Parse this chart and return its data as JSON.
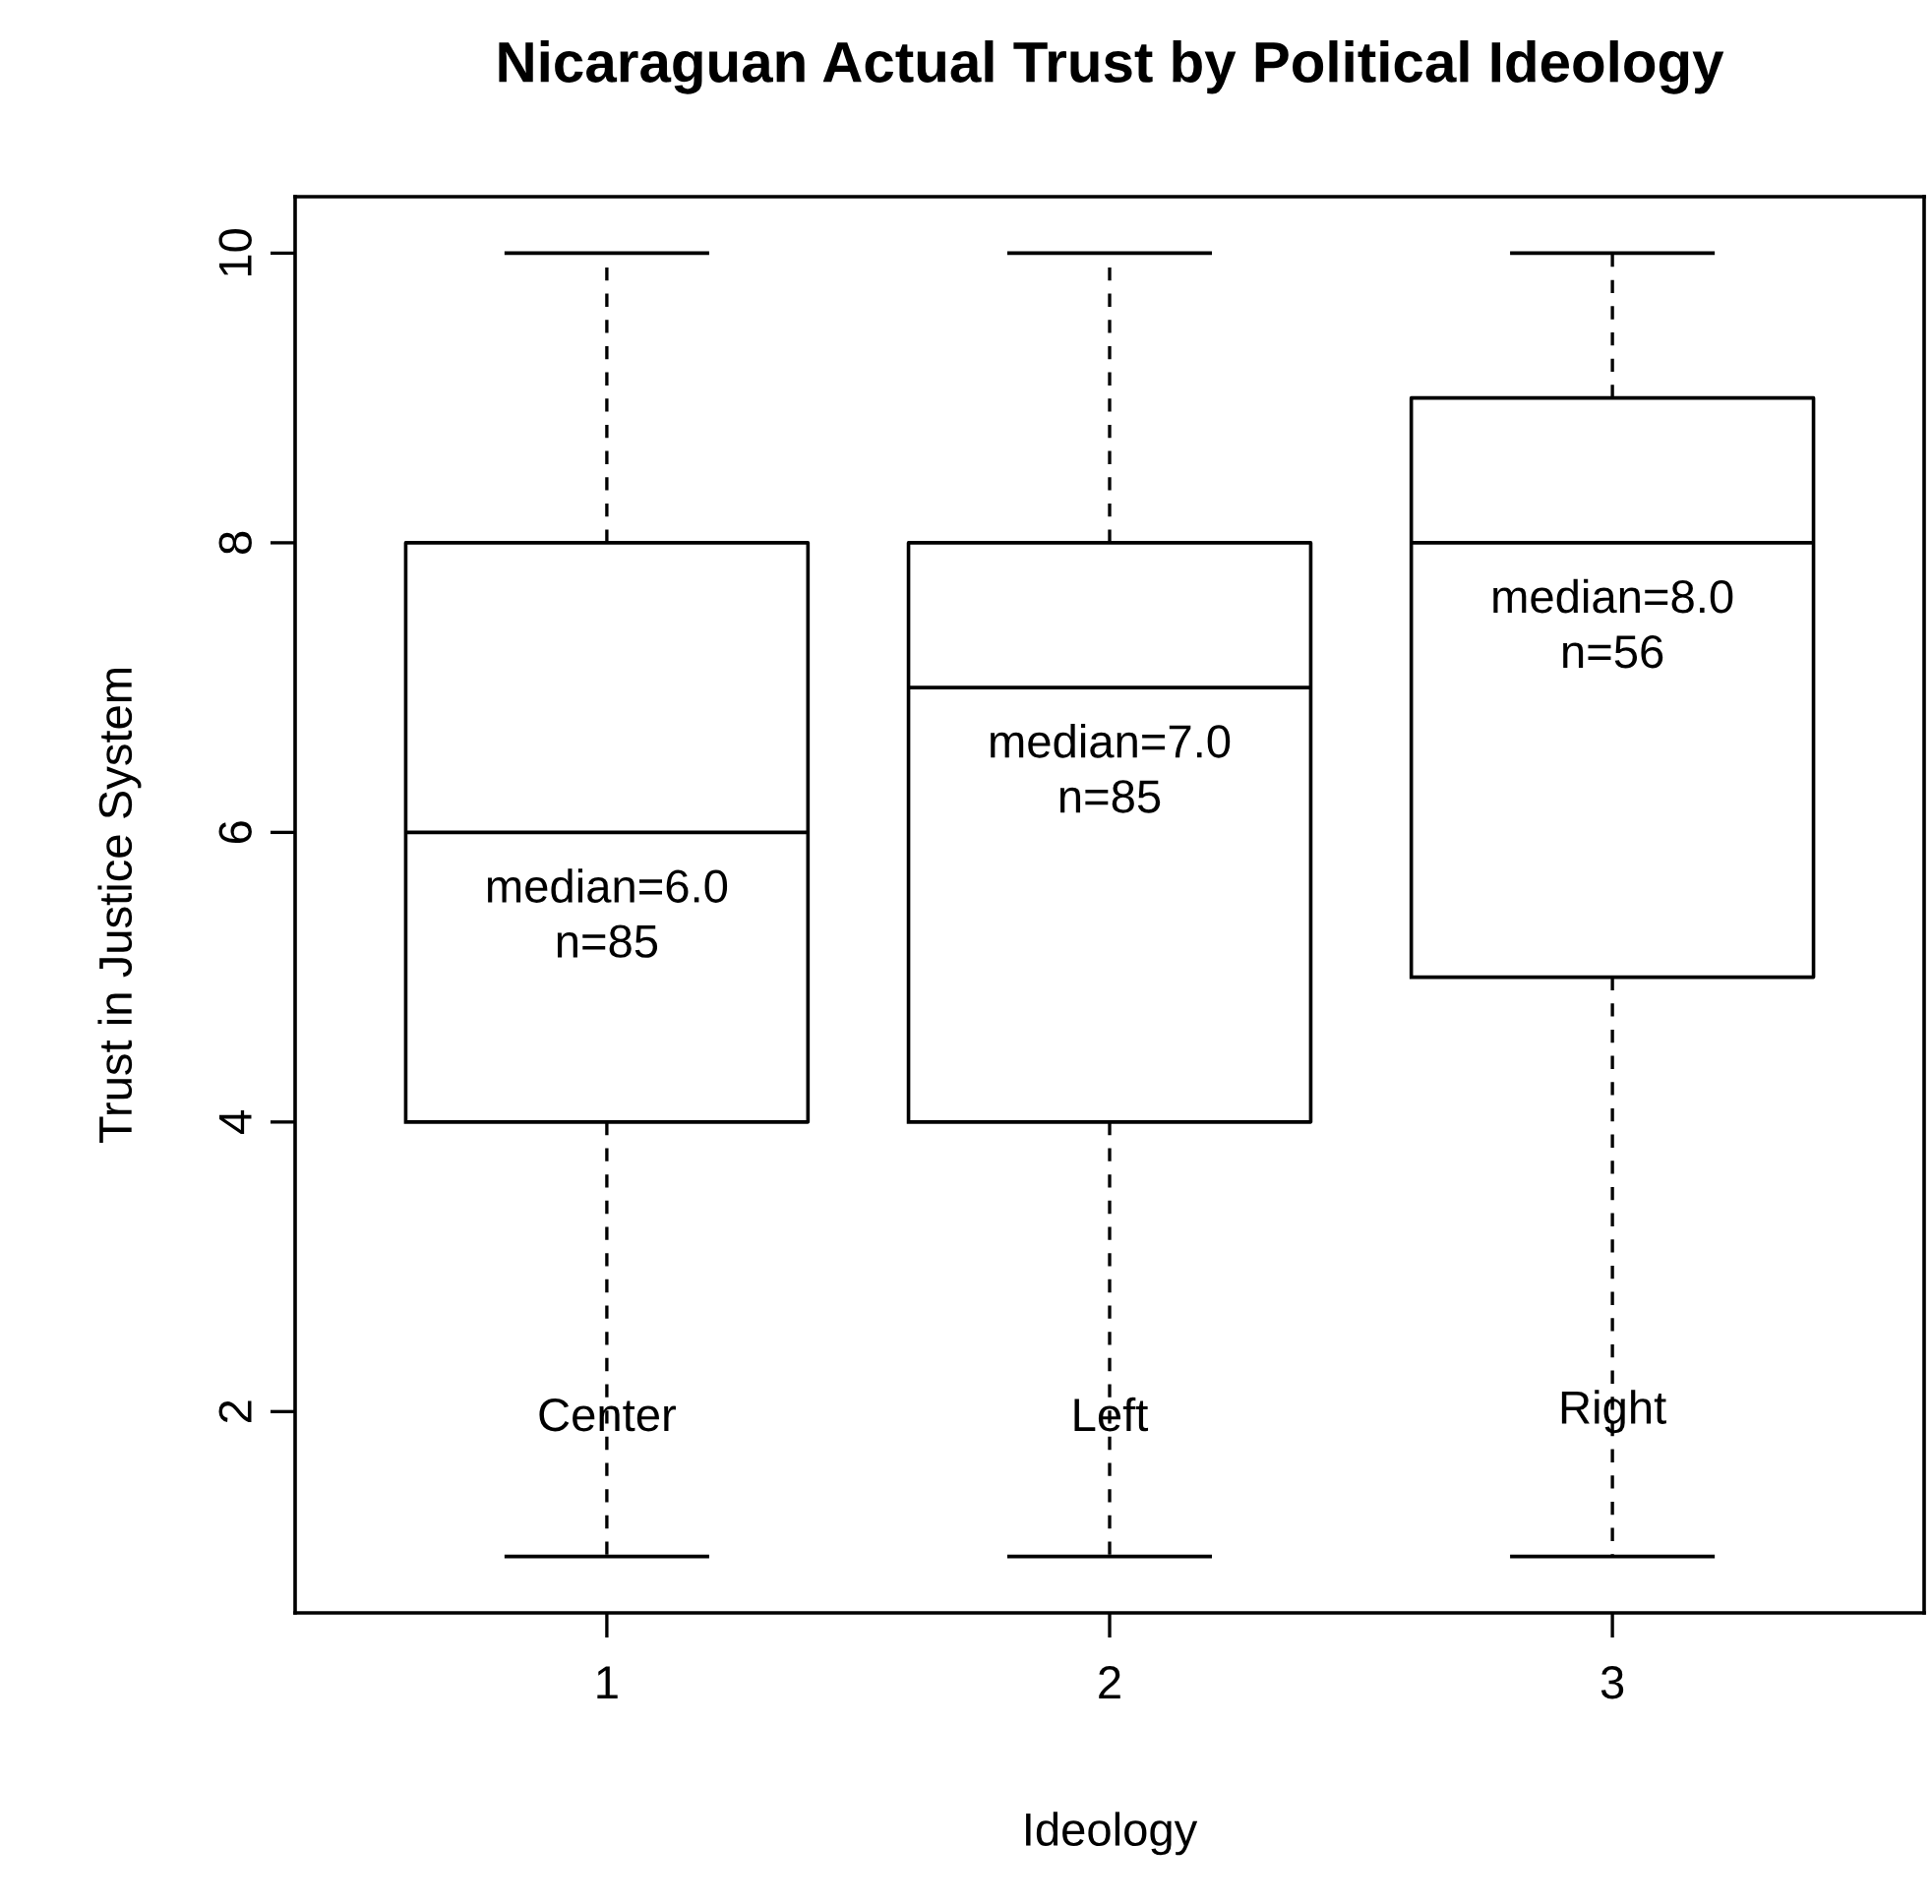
{
  "chart_data": {
    "type": "box",
    "title": "Nicaraguan Actual Trust by Political Ideology",
    "xlabel": "Ideology",
    "ylabel": "Trust in Justice System",
    "categories": [
      "1",
      "2",
      "3"
    ],
    "boxes": [
      {
        "low": 1,
        "q1": 4,
        "median": 6,
        "q3": 8,
        "high": 10
      },
      {
        "low": 1,
        "q1": 4,
        "median": 7,
        "q3": 8,
        "high": 10
      },
      {
        "low": 1,
        "q1": 5,
        "median": 8,
        "q3": 9,
        "high": 10
      }
    ],
    "ylim": [
      0.61,
      10.39
    ],
    "yticks": [
      2,
      4,
      6,
      8,
      10
    ],
    "grid": false,
    "annotations": [
      "median=6.0\nn=85",
      "median=7.0\nn=85",
      "median=8.0\nn=56",
      {
        "text": "Center",
        "x": "1",
        "y": 1.95
      },
      {
        "text": "Left",
        "x": "2",
        "y": 1.95
      },
      {
        "text": "Right",
        "x": "3",
        "y": 2.0
      }
    ]
  }
}
